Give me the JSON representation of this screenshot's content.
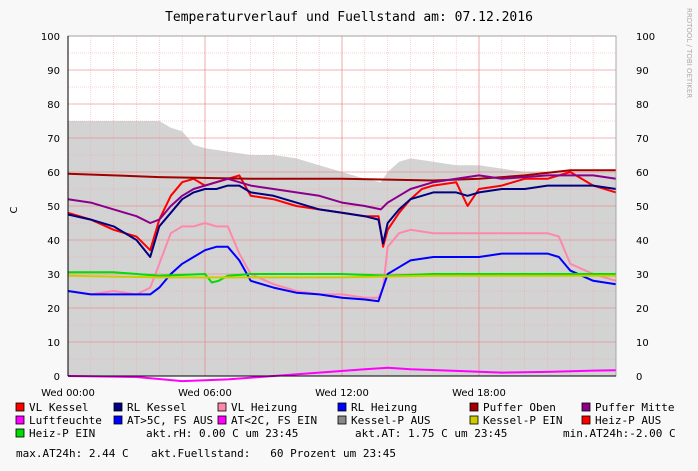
{
  "chart_data": {
    "type": "line",
    "title": "Temperaturverlauf und Fuellstand am: 07.12.2016",
    "ylabel": "C",
    "side_credit": "RRDTOOL / TOBI OETIKER",
    "ylim": [
      0,
      100
    ],
    "xlim": [
      0,
      24
    ],
    "y_ticks": [
      0,
      10,
      20,
      30,
      40,
      50,
      60,
      70,
      80,
      90,
      100
    ],
    "x_ticks": [
      {
        "x": 0,
        "label": "Wed 00:00"
      },
      {
        "x": 6,
        "label": "Wed 06:00"
      },
      {
        "x": 12,
        "label": "Wed 12:00"
      },
      {
        "x": 18,
        "label": "Wed 18:00"
      }
    ],
    "grid": true,
    "fill_series": {
      "name": "akt.Fuellstand",
      "color": "#d3d3d3",
      "points": [
        [
          0,
          75
        ],
        [
          2,
          75
        ],
        [
          4,
          75
        ],
        [
          4.5,
          73
        ],
        [
          5,
          72
        ],
        [
          5.5,
          68
        ],
        [
          6,
          67
        ],
        [
          7,
          66
        ],
        [
          8,
          65
        ],
        [
          9,
          65
        ],
        [
          10,
          64
        ],
        [
          11,
          62
        ],
        [
          12,
          60
        ],
        [
          13,
          58
        ],
        [
          13.7,
          57
        ],
        [
          14,
          60
        ],
        [
          14.5,
          63
        ],
        [
          15,
          64
        ],
        [
          16,
          63
        ],
        [
          17,
          62
        ],
        [
          18,
          62
        ],
        [
          19,
          61
        ],
        [
          20,
          60
        ],
        [
          21,
          60
        ],
        [
          22,
          60
        ],
        [
          23,
          60
        ],
        [
          24,
          60
        ]
      ]
    },
    "series": [
      {
        "name": "VL Kessel",
        "color": "#ff0000",
        "points": [
          [
            0,
            48
          ],
          [
            1,
            46
          ],
          [
            2,
            43
          ],
          [
            3,
            41
          ],
          [
            3.6,
            37
          ],
          [
            4,
            46
          ],
          [
            4.5,
            53
          ],
          [
            5,
            57
          ],
          [
            5.5,
            58
          ],
          [
            6,
            56
          ],
          [
            6.5,
            57
          ],
          [
            7,
            58
          ],
          [
            7.5,
            59
          ],
          [
            8,
            53
          ],
          [
            9,
            52
          ],
          [
            10,
            50
          ],
          [
            11,
            49
          ],
          [
            12,
            48
          ],
          [
            13,
            47
          ],
          [
            13.6,
            47
          ],
          [
            13.8,
            38
          ],
          [
            14,
            43
          ],
          [
            14.5,
            48
          ],
          [
            15,
            52
          ],
          [
            15.5,
            55
          ],
          [
            16,
            56
          ],
          [
            17,
            57
          ],
          [
            17.5,
            50
          ],
          [
            18,
            55
          ],
          [
            19,
            56
          ],
          [
            20,
            58
          ],
          [
            21,
            58
          ],
          [
            22,
            60
          ],
          [
            23,
            56
          ],
          [
            24,
            54
          ]
        ]
      },
      {
        "name": "RL Kessel",
        "color": "#000080",
        "points": [
          [
            0,
            47.5
          ],
          [
            1,
            46
          ],
          [
            2,
            44
          ],
          [
            3,
            40
          ],
          [
            3.6,
            35
          ],
          [
            4,
            44
          ],
          [
            4.5,
            48
          ],
          [
            5,
            52
          ],
          [
            5.5,
            54
          ],
          [
            6,
            55
          ],
          [
            6.5,
            55
          ],
          [
            7,
            56
          ],
          [
            7.5,
            56
          ],
          [
            8,
            54
          ],
          [
            9,
            53
          ],
          [
            10,
            51
          ],
          [
            11,
            49
          ],
          [
            12,
            48
          ],
          [
            13,
            47
          ],
          [
            13.6,
            46
          ],
          [
            13.8,
            39
          ],
          [
            14,
            45
          ],
          [
            14.5,
            49
          ],
          [
            15,
            52
          ],
          [
            15.5,
            53
          ],
          [
            16,
            54
          ],
          [
            17,
            54
          ],
          [
            17.5,
            53
          ],
          [
            18,
            54
          ],
          [
            19,
            55
          ],
          [
            20,
            55
          ],
          [
            21,
            56
          ],
          [
            22,
            56
          ],
          [
            23,
            56
          ],
          [
            24,
            55
          ]
        ]
      },
      {
        "name": "VL Heizung",
        "color": "#ff88aa",
        "points": [
          [
            0,
            25
          ],
          [
            1,
            24
          ],
          [
            2,
            25
          ],
          [
            3,
            24
          ],
          [
            3.6,
            26
          ],
          [
            4,
            33
          ],
          [
            4.5,
            42
          ],
          [
            5,
            44
          ],
          [
            5.5,
            44
          ],
          [
            6,
            45
          ],
          [
            6.5,
            44
          ],
          [
            7,
            44
          ],
          [
            7.5,
            36
          ],
          [
            8,
            30
          ],
          [
            9,
            27
          ],
          [
            10,
            25
          ],
          [
            11,
            24
          ],
          [
            12,
            24
          ],
          [
            13,
            23
          ],
          [
            13.6,
            23
          ],
          [
            13.8,
            26
          ],
          [
            14,
            38
          ],
          [
            14.5,
            42
          ],
          [
            15,
            43
          ],
          [
            16,
            42
          ],
          [
            17,
            42
          ],
          [
            18,
            42
          ],
          [
            19,
            42
          ],
          [
            20,
            42
          ],
          [
            21,
            42
          ],
          [
            21.5,
            41
          ],
          [
            22,
            33
          ],
          [
            23,
            30
          ],
          [
            24,
            28
          ]
        ]
      },
      {
        "name": "RL Heizung",
        "color": "#0000ff",
        "points": [
          [
            0,
            25
          ],
          [
            1,
            24
          ],
          [
            2,
            24
          ],
          [
            3,
            24
          ],
          [
            3.6,
            24
          ],
          [
            4,
            26
          ],
          [
            4.5,
            30
          ],
          [
            5,
            33
          ],
          [
            5.5,
            35
          ],
          [
            6,
            37
          ],
          [
            6.5,
            38
          ],
          [
            7,
            38
          ],
          [
            7.5,
            34
          ],
          [
            8,
            28
          ],
          [
            9,
            26
          ],
          [
            10,
            24.5
          ],
          [
            11,
            24
          ],
          [
            12,
            23
          ],
          [
            13,
            22.5
          ],
          [
            13.6,
            22
          ],
          [
            13.8,
            26
          ],
          [
            14,
            30
          ],
          [
            14.5,
            32
          ],
          [
            15,
            34
          ],
          [
            16,
            35
          ],
          [
            17,
            35
          ],
          [
            18,
            35
          ],
          [
            19,
            36
          ],
          [
            20,
            36
          ],
          [
            21,
            36
          ],
          [
            21.5,
            35
          ],
          [
            22,
            31
          ],
          [
            23,
            28
          ],
          [
            24,
            27
          ]
        ]
      },
      {
        "name": "Puffer Oben",
        "color": "#a00000",
        "points": [
          [
            0,
            59.5
          ],
          [
            4,
            58.5
          ],
          [
            8,
            58
          ],
          [
            12,
            58
          ],
          [
            16,
            57.5
          ],
          [
            18,
            58
          ],
          [
            20,
            59
          ],
          [
            22,
            60.5
          ],
          [
            24,
            60.5
          ]
        ]
      },
      {
        "name": "Puffer Mitte",
        "color": "#8b008b",
        "points": [
          [
            0,
            52
          ],
          [
            1,
            51
          ],
          [
            2,
            49
          ],
          [
            3,
            47
          ],
          [
            3.6,
            45
          ],
          [
            4,
            46
          ],
          [
            4.5,
            50
          ],
          [
            5,
            53
          ],
          [
            5.5,
            55
          ],
          [
            6,
            56
          ],
          [
            6.5,
            57
          ],
          [
            7,
            58
          ],
          [
            8,
            56
          ],
          [
            9,
            55
          ],
          [
            10,
            54
          ],
          [
            11,
            53
          ],
          [
            12,
            51
          ],
          [
            13,
            50
          ],
          [
            13.7,
            49
          ],
          [
            14,
            51
          ],
          [
            14.5,
            53
          ],
          [
            15,
            55
          ],
          [
            16,
            57
          ],
          [
            17,
            58
          ],
          [
            18,
            59
          ],
          [
            19,
            58
          ],
          [
            20,
            58.5
          ],
          [
            21,
            59
          ],
          [
            22,
            59
          ],
          [
            23,
            59
          ],
          [
            24,
            58
          ]
        ]
      },
      {
        "name": "Heiz-P EIN",
        "color": "#00dd00",
        "points": [
          [
            0,
            30.5
          ],
          [
            2,
            30.5
          ],
          [
            4,
            29.5
          ],
          [
            6,
            30
          ],
          [
            6.3,
            27.5
          ],
          [
            6.6,
            28
          ],
          [
            7,
            29.5
          ],
          [
            8,
            30
          ],
          [
            10,
            30
          ],
          [
            12,
            30
          ],
          [
            14,
            29.5
          ],
          [
            16,
            30
          ],
          [
            18,
            30
          ],
          [
            20,
            30
          ],
          [
            22,
            30
          ],
          [
            24,
            30
          ]
        ]
      },
      {
        "name": "Kessel-P EIN",
        "color": "#cccc00",
        "points": [
          [
            0,
            29.5
          ],
          [
            4,
            29
          ],
          [
            6,
            29
          ],
          [
            8,
            29
          ],
          [
            12,
            29
          ],
          [
            16,
            29.5
          ],
          [
            20,
            29.5
          ],
          [
            24,
            29.5
          ]
        ]
      },
      {
        "name": "AT>5C, FS AUS",
        "color": "#ff00ff",
        "points": [
          [
            0,
            0
          ],
          [
            3,
            -0.3
          ],
          [
            5,
            -1.5
          ],
          [
            7,
            -1
          ],
          [
            9,
            0
          ],
          [
            11,
            1
          ],
          [
            13,
            2
          ],
          [
            14,
            2.4
          ],
          [
            15,
            2
          ],
          [
            17,
            1.5
          ],
          [
            19,
            1
          ],
          [
            21,
            1.2
          ],
          [
            23,
            1.6
          ],
          [
            24,
            1.7
          ]
        ]
      }
    ],
    "legend": [
      {
        "label": "VL Kessel",
        "color": "#ff0000"
      },
      {
        "label": "RL Kessel",
        "color": "#000080"
      },
      {
        "label": "VL Heizung",
        "color": "#ff88aa"
      },
      {
        "label": "RL Heizung",
        "color": "#0000ff"
      },
      {
        "label": "Puffer Oben",
        "color": "#a00000"
      },
      {
        "label": "Puffer Mitte",
        "color": "#8b008b"
      },
      {
        "label": "Luftfeuchte",
        "color": "#ff00ff"
      },
      {
        "label": "AT>5C, FS AUS",
        "color": "#0000ff"
      },
      {
        "label": "AT<2C, FS EIN",
        "color": "#ff00ff"
      },
      {
        "label": "Kessel-P AUS",
        "color": "#888888"
      },
      {
        "label": "Kessel-P EIN",
        "color": "#cccc00"
      },
      {
        "label": "Heiz-P AUS",
        "color": "#ff0000"
      },
      {
        "label": "Heiz-P EIN",
        "color": "#00dd00"
      }
    ],
    "status_line_1": [
      "akt.rH: 0.00 C um 23:45",
      "akt.AT: 1.75 C um 23:45",
      "min.AT24h:-2.00 C"
    ],
    "status_line_2": [
      "max.AT24h: 2.44 C",
      "akt.Fuellstand:   60 Prozent um 23:45"
    ]
  }
}
